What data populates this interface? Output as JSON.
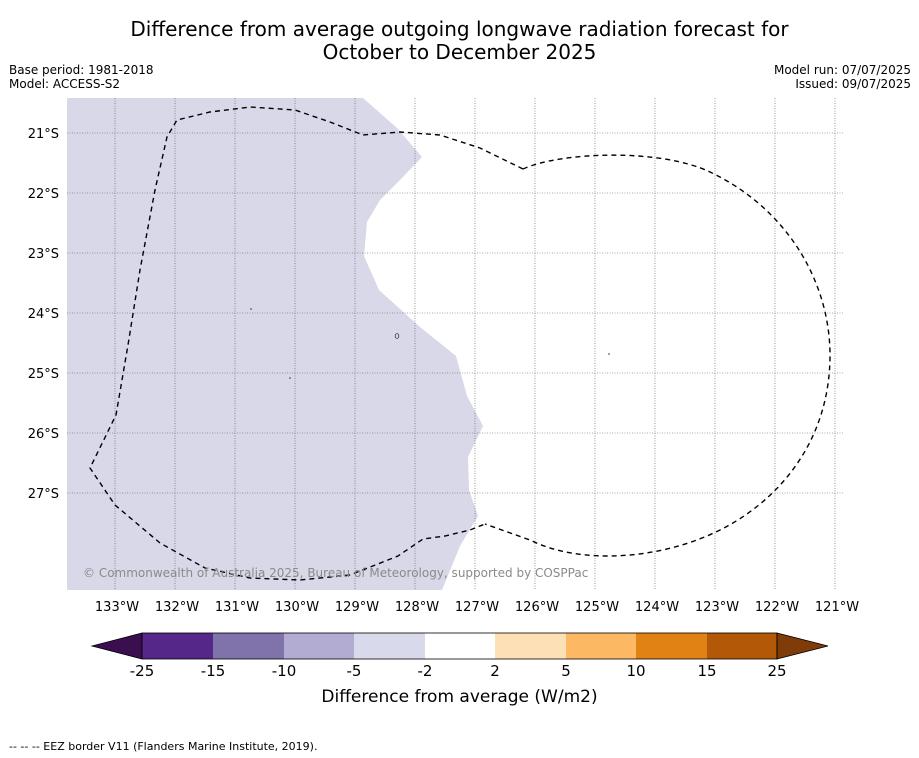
{
  "title": {
    "line1": "Difference from average outgoing longwave radiation forecast for",
    "line2": "October to December 2025"
  },
  "meta_left": {
    "base_period": "Base period: 1981-2018",
    "model": "Model: ACCESS-S2"
  },
  "meta_right": {
    "model_run": "Model run: 07/07/2025",
    "issued": "Issued: 09/07/2025"
  },
  "map": {
    "lat_labels": [
      "21°S",
      "22°S",
      "23°S",
      "24°S",
      "25°S",
      "26°S",
      "27°S"
    ],
    "lon_labels": [
      "133°W",
      "132°W",
      "131°W",
      "130°W",
      "129°W",
      "128°W",
      "127°W",
      "126°W",
      "125°W",
      "124°W",
      "123°W",
      "122°W",
      "121°W"
    ],
    "copyright": "© Commonwealth of Australia 2025, Bureau of Meteorology, supported by COSPPac",
    "fill_category": "-5 to -2",
    "fill_color": "#d8d8e9",
    "eez_line_color": "#000000"
  },
  "colorbar": {
    "ticks": [
      "-25",
      "-15",
      "-10",
      "-5",
      "-2",
      "2",
      "5",
      "10",
      "15",
      "25"
    ],
    "colors": [
      "#3b0f4f",
      "#542788",
      "#8073ac",
      "#b2abd2",
      "#d8daeb",
      "#ffffff",
      "#fee0b6",
      "#fdb863",
      "#e08214",
      "#b35806",
      "#7f3b08"
    ],
    "label": "Difference from average (W/m2)"
  },
  "footer": "--  --  -- EEZ border V11 (Flanders Marine Institute, 2019)."
}
